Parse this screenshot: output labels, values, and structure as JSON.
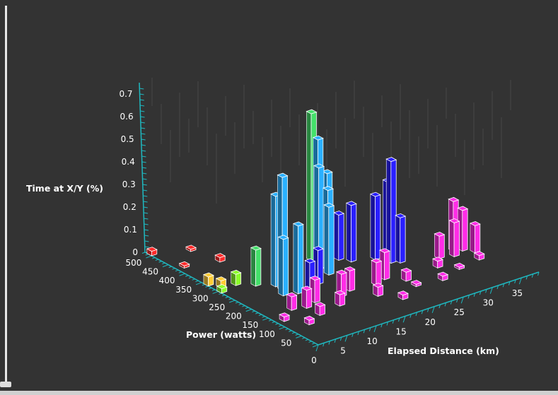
{
  "chart_data": {
    "type": "bar3d",
    "title": "",
    "zlabel": "Time at X/Y (%)",
    "ylabel": "Power (watts)",
    "xlabel": "Elapsed Distance (km)",
    "z_ticks": [
      "0",
      "0.1",
      "0.2",
      "0.3",
      "0.4",
      "0.5",
      "0.6",
      "0.7"
    ],
    "y_ticks": [
      "50",
      "100",
      "150",
      "200",
      "250",
      "300",
      "350",
      "400",
      "450",
      "500"
    ],
    "x_ticks": [
      "0",
      "5",
      "10",
      "15",
      "20",
      "25",
      "30",
      "35"
    ],
    "zlim": [
      0,
      0.75
    ],
    "ylim": [
      0,
      520
    ],
    "xlim": [
      0,
      38
    ],
    "grid": false,
    "bars": [
      {
        "x": 7,
        "y": 230,
        "z": 0.5,
        "color": "#2ab0ff"
      },
      {
        "x": 7,
        "y": 250,
        "z": 0.4,
        "color": "#2ab0ff"
      },
      {
        "x": 6,
        "y": 210,
        "z": 0.25,
        "color": "#2ab0ff"
      },
      {
        "x": 8,
        "y": 200,
        "z": 0.3,
        "color": "#2ab0ff"
      },
      {
        "x": 5,
        "y": 275,
        "z": 0.16,
        "color": "#44e06a"
      },
      {
        "x": 16,
        "y": 300,
        "z": 0.65,
        "color": "#44e06a"
      },
      {
        "x": 16,
        "y": 280,
        "z": 0.55,
        "color": "#2ab0ff"
      },
      {
        "x": 15,
        "y": 260,
        "z": 0.45,
        "color": "#2ab0ff"
      },
      {
        "x": 17,
        "y": 270,
        "z": 0.4,
        "color": "#2ab0ff"
      },
      {
        "x": 15,
        "y": 230,
        "z": 0.3,
        "color": "#2ab0ff"
      },
      {
        "x": 16,
        "y": 250,
        "z": 0.35,
        "color": "#2ab0ff"
      },
      {
        "x": 24,
        "y": 200,
        "z": 0.45,
        "color": "#2a1fff"
      },
      {
        "x": 24,
        "y": 210,
        "z": 0.35,
        "color": "#2a1fff"
      },
      {
        "x": 23,
        "y": 230,
        "z": 0.28,
        "color": "#2a1fff"
      },
      {
        "x": 25,
        "y": 190,
        "z": 0.2,
        "color": "#2a1fff"
      },
      {
        "x": 20,
        "y": 250,
        "z": 0.25,
        "color": "#2a1fff"
      },
      {
        "x": 19,
        "y": 270,
        "z": 0.2,
        "color": "#2a1fff"
      },
      {
        "x": 12,
        "y": 210,
        "z": 0.15,
        "color": "#2a1fff"
      },
      {
        "x": 10,
        "y": 200,
        "z": 0.12,
        "color": "#2a1fff"
      },
      {
        "x": 33,
        "y": 170,
        "z": 0.22,
        "color": "#ff2ce6"
      },
      {
        "x": 34,
        "y": 160,
        "z": 0.18,
        "color": "#ff2ce6"
      },
      {
        "x": 32,
        "y": 150,
        "z": 0.15,
        "color": "#ff2ce6"
      },
      {
        "x": 35,
        "y": 140,
        "z": 0.12,
        "color": "#ff2ce6"
      },
      {
        "x": 30,
        "y": 160,
        "z": 0.1,
        "color": "#ff2ce6"
      },
      {
        "x": 20,
        "y": 150,
        "z": 0.12,
        "color": "#ff2ce6"
      },
      {
        "x": 18,
        "y": 140,
        "z": 0.1,
        "color": "#ff2ce6"
      },
      {
        "x": 14,
        "y": 150,
        "z": 0.09,
        "color": "#ff2ce6"
      },
      {
        "x": 12,
        "y": 140,
        "z": 0.1,
        "color": "#ff2ce6"
      },
      {
        "x": 8,
        "y": 150,
        "z": 0.1,
        "color": "#ff2ce6"
      },
      {
        "x": 6,
        "y": 140,
        "z": 0.08,
        "color": "#ff2ce6"
      },
      {
        "x": 4,
        "y": 150,
        "z": 0.06,
        "color": "#ff2ce6"
      },
      {
        "x": 6,
        "y": 100,
        "z": 0.04,
        "color": "#ff2ce6"
      },
      {
        "x": 10,
        "y": 110,
        "z": 0.05,
        "color": "#ff2ce6"
      },
      {
        "x": 16,
        "y": 100,
        "z": 0.04,
        "color": "#ff2ce6"
      },
      {
        "x": 22,
        "y": 120,
        "z": 0.04,
        "color": "#ff2ce6"
      },
      {
        "x": 28,
        "y": 130,
        "z": 0.03,
        "color": "#ff2ce6"
      },
      {
        "x": 1,
        "y": 120,
        "z": 0.02,
        "color": "#ff2ce6"
      },
      {
        "x": 3,
        "y": 80,
        "z": 0.02,
        "color": "#ff2ce6"
      },
      {
        "x": 26,
        "y": 80,
        "z": 0.02,
        "color": "#ff2ce6"
      },
      {
        "x": 18,
        "y": 60,
        "z": 0.02,
        "color": "#ff2ce6"
      },
      {
        "x": 0,
        "y": 330,
        "z": 0.04,
        "color": "#ffcc33"
      },
      {
        "x": 1,
        "y": 310,
        "z": 0.03,
        "color": "#ffcc33"
      },
      {
        "x": 12,
        "y": 320,
        "z": 0.03,
        "color": "#ffcc33"
      },
      {
        "x": 3,
        "y": 300,
        "z": 0.05,
        "color": "#8cff2a"
      },
      {
        "x": 0,
        "y": 290,
        "z": 0.02,
        "color": "#8cff2a"
      },
      {
        "x": 30,
        "y": 280,
        "z": 0.05,
        "color": "#8cff2a"
      },
      {
        "x": 31,
        "y": 300,
        "z": 0.03,
        "color": "#ffcc33"
      },
      {
        "x": 0,
        "y": 500,
        "z": 0.02,
        "color": "#ff2a2a"
      },
      {
        "x": 5,
        "y": 470,
        "z": 0.01,
        "color": "#ff2a2a"
      },
      {
        "x": 6,
        "y": 400,
        "z": 0.02,
        "color": "#ff2a2a"
      },
      {
        "x": 1,
        "y": 420,
        "z": 0.01,
        "color": "#ff2a2a"
      },
      {
        "x": 22,
        "y": 90,
        "z": 0.01,
        "color": "#ff2ce6"
      },
      {
        "x": 30,
        "y": 100,
        "z": 0.01,
        "color": "#ff2ce6"
      },
      {
        "x": 34,
        "y": 110,
        "z": 0.02,
        "color": "#ff2ce6"
      }
    ]
  }
}
